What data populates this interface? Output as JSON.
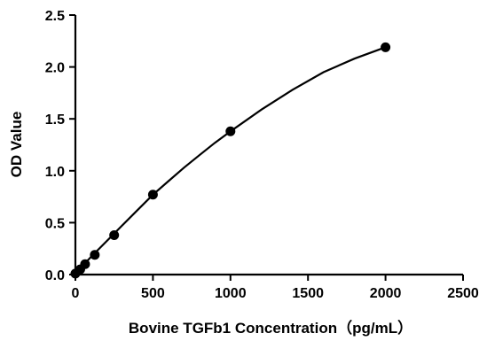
{
  "chart_data": {
    "type": "scatter",
    "title": "",
    "xlabel": "Bovine TGFb1 Concentration（pg/mL）",
    "ylabel": "OD Value",
    "xlim": [
      0,
      2500
    ],
    "ylim": [
      0,
      2.5
    ],
    "x_ticks": [
      "0",
      "500",
      "1000",
      "1500",
      "2000",
      "2500"
    ],
    "y_ticks": [
      "0.0",
      "0.5",
      "1.0",
      "1.5",
      "2.0",
      "2.5"
    ],
    "grid": false,
    "legend": "none",
    "series": [
      {
        "x": [
          0,
          31.25,
          62.5,
          125,
          250,
          500,
          1000,
          2000
        ],
        "y": [
          0.01,
          0.05,
          0.1,
          0.19,
          0.38,
          0.77,
          1.38,
          2.19
        ],
        "marker_color": "#000000",
        "fit_line": true
      }
    ],
    "fit_curve": {
      "x": [
        0,
        100,
        200,
        300,
        400,
        500,
        600,
        700,
        800,
        900,
        1000,
        1200,
        1400,
        1600,
        1800,
        2000
      ],
      "y": [
        0.01,
        0.17,
        0.32,
        0.47,
        0.62,
        0.77,
        0.9,
        1.03,
        1.15,
        1.27,
        1.38,
        1.59,
        1.78,
        1.95,
        2.08,
        2.19
      ]
    }
  }
}
